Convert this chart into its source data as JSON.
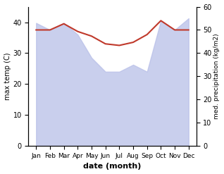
{
  "months": [
    "Jan",
    "Feb",
    "Mar",
    "Apr",
    "May",
    "Jun",
    "Jul",
    "Aug",
    "Sep",
    "Oct",
    "Nov",
    "Dec"
  ],
  "max_temp": [
    37.5,
    37.5,
    39.5,
    37.0,
    35.5,
    33.0,
    32.5,
    33.5,
    36.0,
    40.5,
    37.5,
    37.5
  ],
  "temp_color": "#c0392b",
  "precip_fill_color": "#b8bfe8",
  "ylim_temp": [
    0,
    45
  ],
  "ylim_precip": [
    0,
    60
  ],
  "ylabel_left": "max temp (C)",
  "ylabel_right": "med. precipitation (kg/m2)",
  "xlabel": "date (month)",
  "temp_yticks": [
    0,
    10,
    20,
    30,
    40
  ],
  "precip_yticks": [
    0,
    10,
    20,
    30,
    40,
    50,
    60
  ]
}
